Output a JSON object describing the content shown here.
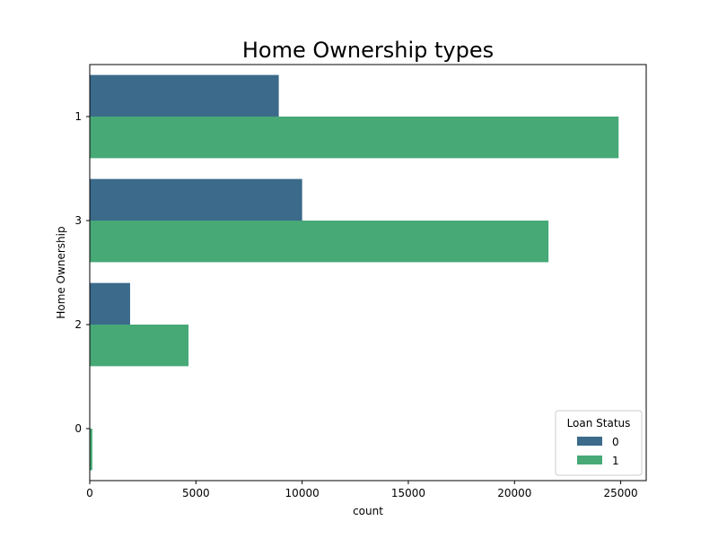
{
  "chart_data": {
    "type": "bar",
    "orientation": "horizontal",
    "title": "Home Ownership types",
    "xlabel": "count",
    "ylabel": "Home Ownership",
    "categories": [
      "1",
      "3",
      "2",
      "0"
    ],
    "series": [
      {
        "name": "0",
        "color": "#3b6a8a",
        "values": [
          8900,
          10000,
          1900,
          0
        ]
      },
      {
        "name": "1",
        "color": "#46a976",
        "values": [
          24900,
          21600,
          4650,
          120
        ]
      }
    ],
    "xlim": [
      0,
      26200
    ],
    "xticks": [
      0,
      5000,
      10000,
      15000,
      20000,
      25000
    ],
    "legend": {
      "title": "Loan Status",
      "placement": "bottom-right"
    },
    "grid": false
  }
}
